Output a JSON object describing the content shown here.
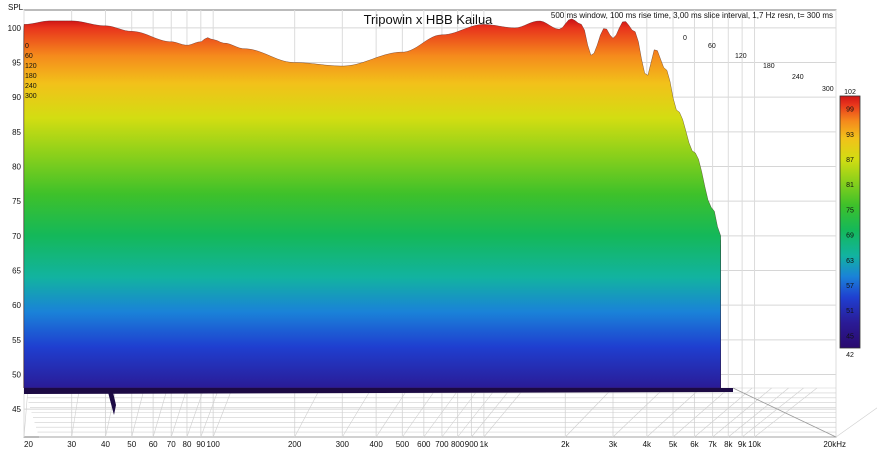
{
  "chart_data": {
    "type": "area",
    "title": "Tripowin x HBB Kailua",
    "subtitle": "500 ms window, 100 ms rise time, 3,00 ms slice interval, 1,7 Hz resn, t= 300 ms",
    "ylabel": "SPL",
    "xlabel": "",
    "x_scale": "log",
    "xlim": [
      20,
      20000
    ],
    "ylim": [
      43,
      102
    ],
    "y_ticks": [
      "45",
      "50",
      "55",
      "60",
      "65",
      "70",
      "75",
      "80",
      "85",
      "90",
      "95",
      "100"
    ],
    "x_ticks": [
      {
        "v": 20,
        "label": "20"
      },
      {
        "v": 30,
        "label": "30"
      },
      {
        "v": 40,
        "label": "40"
      },
      {
        "v": 50,
        "label": "50"
      },
      {
        "v": 60,
        "label": "60"
      },
      {
        "v": 70,
        "label": "70"
      },
      {
        "v": 80,
        "label": "80"
      },
      {
        "v": 90,
        "label": "90"
      },
      {
        "v": 100,
        "label": "100"
      },
      {
        "v": 200,
        "label": "200"
      },
      {
        "v": 300,
        "label": "300"
      },
      {
        "v": 400,
        "label": "400"
      },
      {
        "v": 500,
        "label": "500"
      },
      {
        "v": 600,
        "label": "600"
      },
      {
        "v": 700,
        "label": "700"
      },
      {
        "v": 800,
        "label": "800"
      },
      {
        "v": 900,
        "label": "900"
      },
      {
        "v": 1000,
        "label": "1k"
      },
      {
        "v": 2000,
        "label": "2k"
      },
      {
        "v": 3000,
        "label": "3k"
      },
      {
        "v": 4000,
        "label": "4k"
      },
      {
        "v": 5000,
        "label": "5k"
      },
      {
        "v": 6000,
        "label": "6k"
      },
      {
        "v": 7000,
        "label": "7k"
      },
      {
        "v": 8000,
        "label": "8k"
      },
      {
        "v": 9000,
        "label": "9k"
      },
      {
        "v": 10000,
        "label": "10k"
      },
      {
        "v": 20000,
        "label": "20kHz"
      }
    ],
    "time_axis": {
      "left_labels": [
        "0",
        "60",
        "120",
        "180",
        "240",
        "300"
      ],
      "right_labels": [
        "0",
        "60",
        "120",
        "180",
        "240",
        "300"
      ]
    },
    "colorbar": {
      "min": 42,
      "max": 102,
      "ticks": [
        "102",
        "99",
        "93",
        "87",
        "81",
        "75",
        "69",
        "63",
        "57",
        "51",
        "45",
        "42"
      ]
    },
    "initial_response": {
      "freq": [
        20,
        25,
        30,
        40,
        50,
        70,
        80,
        90,
        95,
        100,
        110,
        130,
        200,
        300,
        500,
        700,
        1000,
        1300,
        1600,
        1900,
        2100,
        2300,
        2500,
        2800,
        3000,
        3300,
        3600,
        4000,
        4300,
        4700,
        5200,
        6000,
        7000,
        7500
      ],
      "spl": [
        100.5,
        101,
        101,
        100.3,
        99.5,
        98,
        97.5,
        98,
        98.6,
        98.3,
        97.8,
        97,
        95,
        94.5,
        96.5,
        99,
        100.5,
        100,
        101,
        99.8,
        101.3,
        100.5,
        96,
        100,
        98.5,
        101,
        99.5,
        93,
        97,
        94,
        88,
        82,
        74,
        70
      ]
    }
  }
}
